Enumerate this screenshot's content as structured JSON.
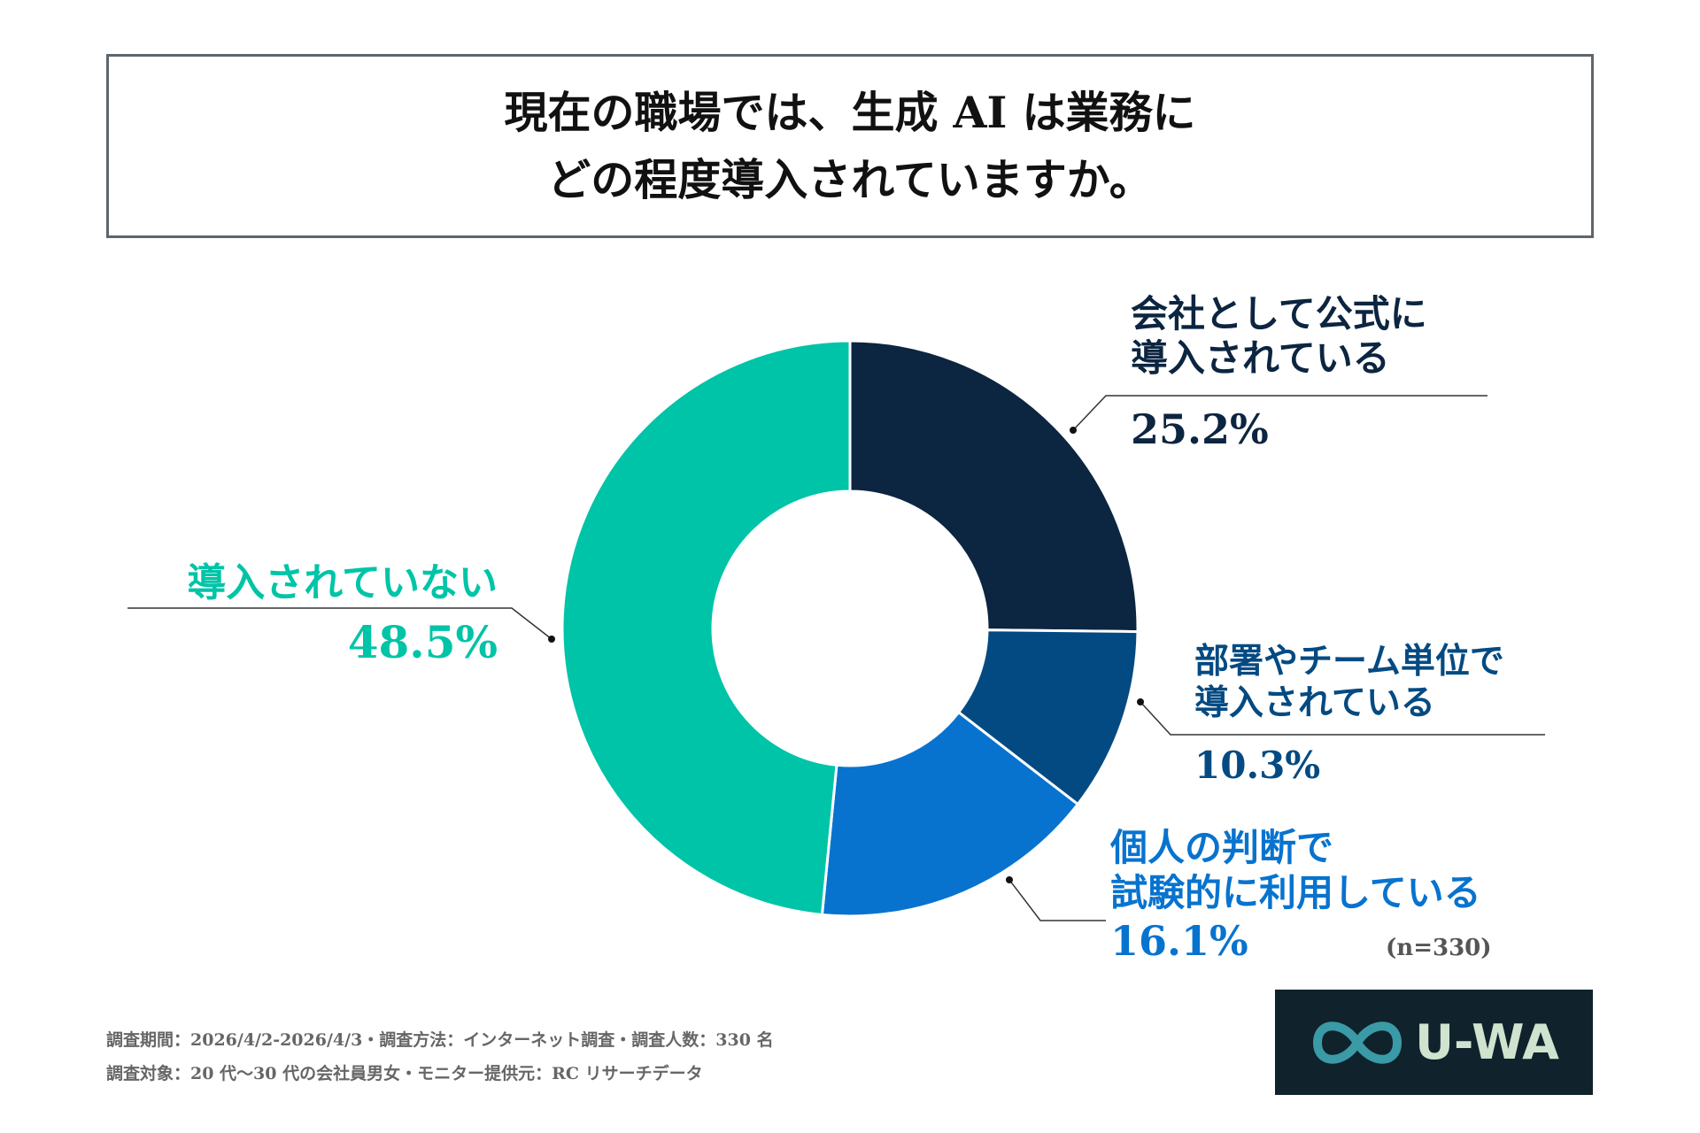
{
  "title": {
    "line1": "現在の職場では、生成 AI は業務に",
    "line2": "どの程度導入されていますか。"
  },
  "chart_data": {
    "type": "pie",
    "donut": true,
    "slices": [
      {
        "label_lines": [
          "会社として公式に",
          "導入されている"
        ],
        "value": 25.2,
        "value_label": "25.2%",
        "color": "#0c2540"
      },
      {
        "label_lines": [
          "部署やチーム単位で",
          "導入されている"
        ],
        "value": 10.3,
        "value_label": "10.3%",
        "color": "#044a82"
      },
      {
        "label_lines": [
          "個人の判断で",
          "試験的に利用している"
        ],
        "value": 16.1,
        "value_label": "16.1%",
        "color": "#0873cf"
      },
      {
        "label_lines": [
          "導入されていない"
        ],
        "value": 48.5,
        "value_label": "48.5%",
        "color": "#00c4a7"
      }
    ],
    "sample_size": "(n=330)"
  },
  "footer": {
    "line1": "調査期間：2026/4/2-2026/4/3・調査方法：インターネット調査・調査人数：330 名",
    "line2": "調査対象：20 代〜30 代の会社員男女・モニター提供元：RC リサーチデータ"
  },
  "logo": {
    "text": "U-WA",
    "icon": "infinity-icon"
  }
}
